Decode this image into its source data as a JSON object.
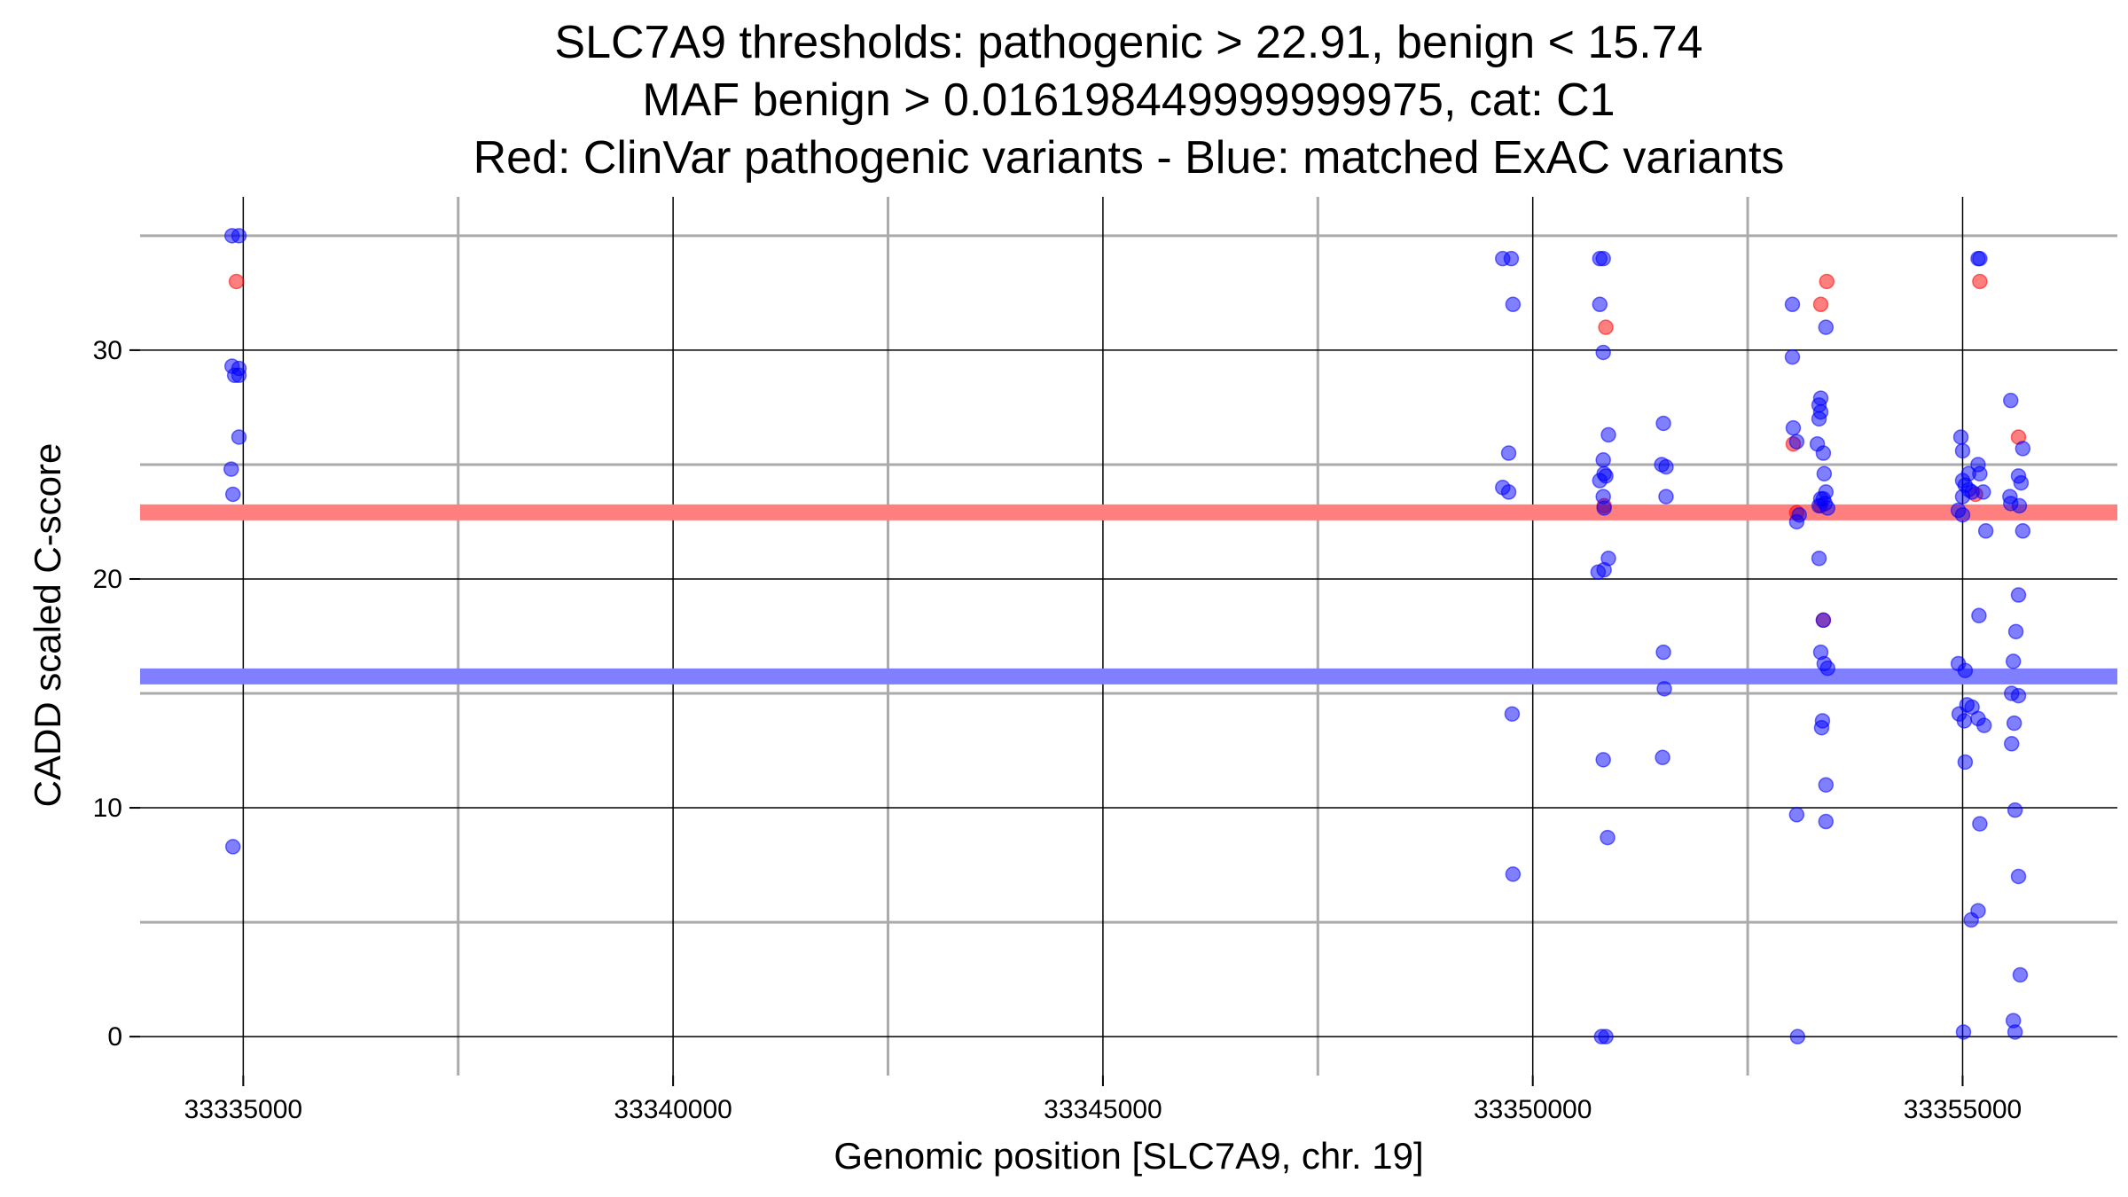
{
  "chart_data": {
    "type": "scatter",
    "title_lines": [
      "SLC7A9 thresholds: pathogenic > 22.91, benign < 15.74",
      "MAF benign > 0.016198449999999975, cat: C1",
      "Red: ClinVar pathogenic variants - Blue: matched ExAC variants"
    ],
    "xlabel": "Genomic position [SLC7A9, chr. 19]",
    "ylabel": "CADD scaled C-score",
    "xlim": [
      33333800,
      33356800
    ],
    "ylim": [
      -1.7,
      36.7
    ],
    "x_ticks": [
      33335000,
      33340000,
      33345000,
      33350000,
      33355000
    ],
    "x_minor_grid": [
      33337500,
      33342500,
      33347500,
      33352500
    ],
    "y_ticks": [
      0,
      10,
      20,
      30
    ],
    "y_minor_grid": [
      5,
      15,
      25,
      35
    ],
    "grid": true,
    "thresholds": [
      {
        "y": 22.91,
        "color": "#ff7f7f"
      },
      {
        "y": 15.74,
        "color": "#7f7fff"
      }
    ],
    "colors": {
      "pathogenic": "#ff0000",
      "benign": "#0000ff"
    },
    "series": [
      {
        "name": "ClinVar pathogenic",
        "color": "#ff0000",
        "points": [
          [
            33334920,
            33
          ],
          [
            33350850,
            31
          ],
          [
            33350830,
            23.2
          ],
          [
            33353030,
            25.9
          ],
          [
            33353070,
            22.9
          ],
          [
            33353350,
            32
          ],
          [
            33353420,
            33
          ],
          [
            33353380,
            18.2
          ],
          [
            33353350,
            23.2
          ],
          [
            33355200,
            33
          ],
          [
            33355150,
            23.7
          ],
          [
            33355650,
            26.2
          ]
        ]
      },
      {
        "name": "matched ExAC",
        "color": "#0000ff",
        "points": [
          [
            33334870,
            35
          ],
          [
            33334950,
            35
          ],
          [
            33334870,
            29.3
          ],
          [
            33334950,
            29.2
          ],
          [
            33334900,
            28.9
          ],
          [
            33334950,
            28.9
          ],
          [
            33334950,
            26.2
          ],
          [
            33334860,
            24.8
          ],
          [
            33334880,
            23.7
          ],
          [
            33334880,
            8.3
          ],
          [
            33349650,
            34
          ],
          [
            33349750,
            34
          ],
          [
            33349770,
            32
          ],
          [
            33349720,
            25.5
          ],
          [
            33349650,
            24
          ],
          [
            33349720,
            23.8
          ],
          [
            33349760,
            14.1
          ],
          [
            33349770,
            7.1
          ],
          [
            33350780,
            34
          ],
          [
            33350820,
            34
          ],
          [
            33350780,
            32
          ],
          [
            33350820,
            29.9
          ],
          [
            33350880,
            26.3
          ],
          [
            33350820,
            25.2
          ],
          [
            33350780,
            24.3
          ],
          [
            33350830,
            24.6
          ],
          [
            33350850,
            24.5
          ],
          [
            33350820,
            23.6
          ],
          [
            33350830,
            23.1
          ],
          [
            33350880,
            20.9
          ],
          [
            33350760,
            20.3
          ],
          [
            33350830,
            20.4
          ],
          [
            33350820,
            12.1
          ],
          [
            33350870,
            8.7
          ],
          [
            33350800,
            0
          ],
          [
            33350850,
            0
          ],
          [
            33351520,
            26.8
          ],
          [
            33351500,
            25.0
          ],
          [
            33351550,
            24.9
          ],
          [
            33351550,
            23.6
          ],
          [
            33351520,
            16.8
          ],
          [
            33351530,
            15.2
          ],
          [
            33351510,
            12.2
          ],
          [
            33353020,
            32
          ],
          [
            33353020,
            29.7
          ],
          [
            33353030,
            26.6
          ],
          [
            33353070,
            26.0
          ],
          [
            33353100,
            22.8
          ],
          [
            33353070,
            22.5
          ],
          [
            33353070,
            9.7
          ],
          [
            33353080,
            0
          ],
          [
            33353310,
            25.9
          ],
          [
            33353350,
            27.9
          ],
          [
            33353330,
            27.6
          ],
          [
            33353350,
            27.3
          ],
          [
            33353330,
            27.0
          ],
          [
            33353410,
            31
          ],
          [
            33353380,
            25.5
          ],
          [
            33353390,
            24.6
          ],
          [
            33353410,
            23.8
          ],
          [
            33353350,
            23.5
          ],
          [
            33353380,
            23.5
          ],
          [
            33353400,
            23.3
          ],
          [
            33353330,
            23.2
          ],
          [
            33353430,
            23.1
          ],
          [
            33353330,
            20.9
          ],
          [
            33353380,
            18.2
          ],
          [
            33353350,
            16.8
          ],
          [
            33353390,
            16.3
          ],
          [
            33353430,
            16.1
          ],
          [
            33353370,
            13.8
          ],
          [
            33353360,
            13.5
          ],
          [
            33353410,
            11.0
          ],
          [
            33353410,
            9.4
          ],
          [
            33354980,
            26.2
          ],
          [
            33355000,
            25.6
          ],
          [
            33355070,
            24.6
          ],
          [
            33355180,
            25.0
          ],
          [
            33355000,
            24.3
          ],
          [
            33355030,
            24.1
          ],
          [
            33355200,
            24.6
          ],
          [
            33355070,
            23.9
          ],
          [
            33355110,
            23.8
          ],
          [
            33355240,
            23.8
          ],
          [
            33355000,
            23.6
          ],
          [
            33354950,
            23.0
          ],
          [
            33355000,
            22.8
          ],
          [
            33355270,
            22.1
          ],
          [
            33355180,
            34
          ],
          [
            33355200,
            34
          ],
          [
            33355190,
            18.4
          ],
          [
            33354950,
            16.3
          ],
          [
            33355030,
            16.0
          ],
          [
            33355050,
            14.5
          ],
          [
            33355110,
            14.4
          ],
          [
            33354960,
            14.1
          ],
          [
            33355020,
            13.8
          ],
          [
            33355180,
            13.9
          ],
          [
            33355250,
            13.6
          ],
          [
            33355030,
            12.0
          ],
          [
            33355200,
            9.3
          ],
          [
            33355180,
            5.5
          ],
          [
            33355100,
            5.1
          ],
          [
            33355010,
            0.2
          ],
          [
            33355560,
            27.8
          ],
          [
            33355700,
            25.7
          ],
          [
            33355650,
            24.5
          ],
          [
            33355680,
            24.2
          ],
          [
            33355550,
            23.6
          ],
          [
            33355560,
            23.3
          ],
          [
            33355660,
            23.2
          ],
          [
            33355700,
            22.1
          ],
          [
            33355650,
            19.3
          ],
          [
            33355620,
            17.7
          ],
          [
            33355590,
            16.4
          ],
          [
            33355570,
            15.0
          ],
          [
            33355650,
            14.9
          ],
          [
            33355600,
            13.7
          ],
          [
            33355570,
            12.8
          ],
          [
            33355610,
            9.9
          ],
          [
            33355650,
            7.0
          ],
          [
            33355670,
            2.7
          ],
          [
            33355590,
            0.7
          ],
          [
            33355610,
            0.2
          ]
        ]
      }
    ]
  }
}
